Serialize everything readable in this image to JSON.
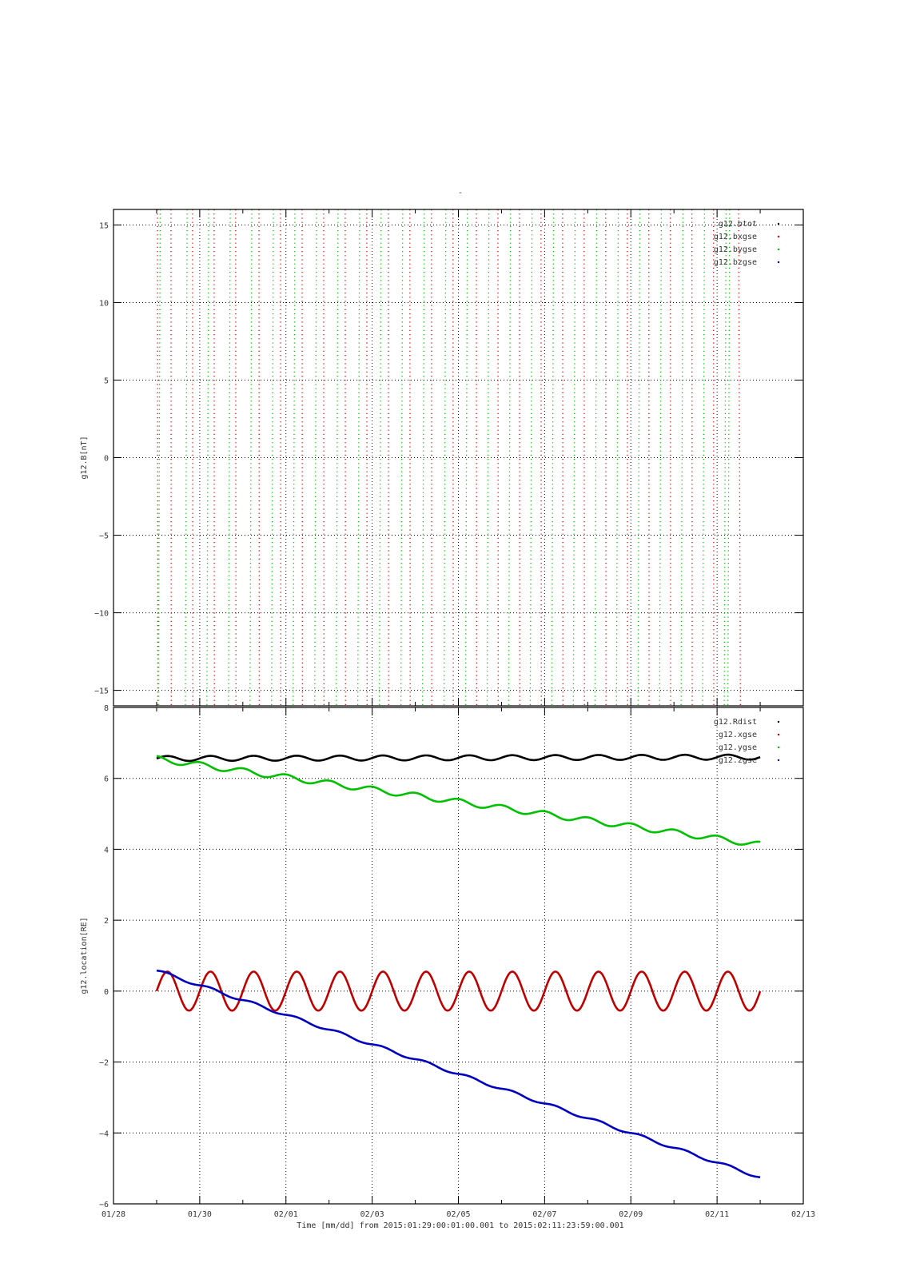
{
  "top_mark": "-",
  "x_axis": {
    "title": "Time [mm/dd]  from 2015:01:29:00:01:00.001  to  2015:02:11:23:59:00.001",
    "range": [
      "2015-01-28",
      "2015-02-13"
    ],
    "ticks": [
      {
        "date": "2015-01-28",
        "label": "01/28"
      },
      {
        "date": "2015-01-30",
        "label": "01/30"
      },
      {
        "date": "2015-02-01",
        "label": "02/01"
      },
      {
        "date": "2015-02-03",
        "label": "02/03"
      },
      {
        "date": "2015-02-05",
        "label": "02/05"
      },
      {
        "date": "2015-02-07",
        "label": "02/07"
      },
      {
        "date": "2015-02-09",
        "label": "02/09"
      },
      {
        "date": "2015-02-11",
        "label": "02/11"
      },
      {
        "date": "2015-02-13",
        "label": "02/13"
      }
    ]
  },
  "chart_data": [
    {
      "type": "scatter",
      "ylabel": "g12.B[nT]",
      "ylim": [
        -16,
        16
      ],
      "yticks": [
        -15,
        -10,
        -5,
        0,
        5,
        10,
        15
      ],
      "grid": true,
      "legend_position": "top-right",
      "series": [
        {
          "name": "g12.btot",
          "color": "#000000",
          "points": []
        },
        {
          "name": "g12.bxgse",
          "color": "#e00000",
          "points_note": "near-vertical dotted sweeps from top to bottom of plot",
          "sweeps": [
            {
              "x_top": "2015-01-29T00:30",
              "x_bottom": "2015-01-29T00:40"
            },
            {
              "x_top": "2015-01-29T08:00",
              "x_bottom": "2015-01-29T08:10"
            },
            {
              "x_top": "2015-01-29T20:00",
              "x_bottom": "2015-01-29T20:10"
            },
            {
              "x_top": "2015-01-30T08:00",
              "x_bottom": "2015-01-30T08:10"
            },
            {
              "x_top": "2015-01-30T20:00",
              "x_bottom": "2015-01-30T20:10"
            },
            {
              "x_top": "2015-01-31T09:00",
              "x_bottom": "2015-01-31T09:10"
            },
            {
              "x_top": "2015-01-31T21:00",
              "x_bottom": "2015-01-31T21:10"
            },
            {
              "x_top": "2015-02-01T09:00",
              "x_bottom": "2015-02-01T09:10"
            },
            {
              "x_top": "2015-02-01T21:00",
              "x_bottom": "2015-02-01T21:10"
            },
            {
              "x_top": "2015-02-02T09:00",
              "x_bottom": "2015-02-02T09:10"
            },
            {
              "x_top": "2015-02-02T21:00",
              "x_bottom": "2015-02-02T21:10"
            },
            {
              "x_top": "2015-02-03T09:00",
              "x_bottom": "2015-02-03T09:10"
            },
            {
              "x_top": "2015-02-03T21:00",
              "x_bottom": "2015-02-03T21:10"
            },
            {
              "x_top": "2015-02-04T09:00",
              "x_bottom": "2015-02-04T09:10"
            },
            {
              "x_top": "2015-02-04T21:00",
              "x_bottom": "2015-02-04T21:10"
            },
            {
              "x_top": "2015-02-05T10:00",
              "x_bottom": "2015-02-05T10:10"
            },
            {
              "x_top": "2015-02-05T22:00",
              "x_bottom": "2015-02-05T22:10"
            },
            {
              "x_top": "2015-02-06T10:00",
              "x_bottom": "2015-02-06T10:10"
            },
            {
              "x_top": "2015-02-06T22:00",
              "x_bottom": "2015-02-06T22:10"
            },
            {
              "x_top": "2015-02-07T10:00",
              "x_bottom": "2015-02-07T10:10"
            },
            {
              "x_top": "2015-02-07T22:00",
              "x_bottom": "2015-02-07T22:10"
            },
            {
              "x_top": "2015-02-08T10:00",
              "x_bottom": "2015-02-08T10:10"
            },
            {
              "x_top": "2015-02-08T22:00",
              "x_bottom": "2015-02-08T22:10"
            },
            {
              "x_top": "2015-02-09T10:00",
              "x_bottom": "2015-02-09T10:10"
            },
            {
              "x_top": "2015-02-09T22:00",
              "x_bottom": "2015-02-09T22:10"
            },
            {
              "x_top": "2015-02-10T10:00",
              "x_bottom": "2015-02-10T10:10"
            },
            {
              "x_top": "2015-02-10T22:00",
              "x_bottom": "2015-02-10T22:10"
            },
            {
              "x_top": "2015-02-11T12:00",
              "x_bottom": "2015-02-11T13:00"
            }
          ]
        },
        {
          "name": "g12.bygse",
          "color": "#00c000",
          "sweeps": [
            {
              "x_top": "2015-01-29T02:00",
              "x_bottom": "2015-01-29T01:00"
            },
            {
              "x_top": "2015-01-29T17:00",
              "x_bottom": "2015-01-29T16:00"
            },
            {
              "x_top": "2015-01-30T05:00",
              "x_bottom": "2015-01-30T04:00"
            },
            {
              "x_top": "2015-01-30T17:00",
              "x_bottom": "2015-01-30T16:00"
            },
            {
              "x_top": "2015-01-31T05:00",
              "x_bottom": "2015-01-31T04:00"
            },
            {
              "x_top": "2015-01-31T17:00",
              "x_bottom": "2015-01-31T16:00"
            },
            {
              "x_top": "2015-02-01T05:00",
              "x_bottom": "2015-02-01T04:00"
            },
            {
              "x_top": "2015-02-01T17:00",
              "x_bottom": "2015-02-01T16:00"
            },
            {
              "x_top": "2015-02-02T05:00",
              "x_bottom": "2015-02-02T04:00"
            },
            {
              "x_top": "2015-02-02T17:00",
              "x_bottom": "2015-02-02T16:00"
            },
            {
              "x_top": "2015-02-03T05:00",
              "x_bottom": "2015-02-03T04:00"
            },
            {
              "x_top": "2015-02-03T17:00",
              "x_bottom": "2015-02-03T16:00"
            },
            {
              "x_top": "2015-02-04T05:00",
              "x_bottom": "2015-02-04T04:00"
            },
            {
              "x_top": "2015-02-04T17:00",
              "x_bottom": "2015-02-04T16:00"
            },
            {
              "x_top": "2015-02-05T05:00",
              "x_bottom": "2015-02-05T04:00"
            },
            {
              "x_top": "2015-02-05T17:00",
              "x_bottom": "2015-02-05T16:00"
            },
            {
              "x_top": "2015-02-06T05:00",
              "x_bottom": "2015-02-06T04:00"
            },
            {
              "x_top": "2015-02-06T17:00",
              "x_bottom": "2015-02-06T16:00"
            },
            {
              "x_top": "2015-02-07T05:00",
              "x_bottom": "2015-02-07T04:00"
            },
            {
              "x_top": "2015-02-07T17:00",
              "x_bottom": "2015-02-07T16:00"
            },
            {
              "x_top": "2015-02-08T05:00",
              "x_bottom": "2015-02-08T04:00"
            },
            {
              "x_top": "2015-02-08T17:00",
              "x_bottom": "2015-02-08T16:00"
            },
            {
              "x_top": "2015-02-09T05:00",
              "x_bottom": "2015-02-09T04:00"
            },
            {
              "x_top": "2015-02-09T17:00",
              "x_bottom": "2015-02-09T16:00"
            },
            {
              "x_top": "2015-02-10T05:00",
              "x_bottom": "2015-02-10T04:00"
            },
            {
              "x_top": "2015-02-10T17:00",
              "x_bottom": "2015-02-10T16:00"
            },
            {
              "x_top": "2015-02-11T05:00",
              "x_bottom": "2015-02-11T04:00"
            },
            {
              "x_top": "2015-02-11T07:00",
              "x_bottom": "2015-02-11T06:00"
            }
          ]
        },
        {
          "name": "g12.bzgse",
          "color": "#0000e0",
          "points": []
        }
      ]
    },
    {
      "type": "line",
      "ylabel": "g12.location[RE]",
      "ylim": [
        -6,
        8
      ],
      "yticks": [
        -6,
        -4,
        -2,
        0,
        2,
        4,
        6,
        8
      ],
      "grid": true,
      "legend_position": "top-right",
      "x_start": "2015-01-29T00:01",
      "x_end": "2015-02-11T23:59",
      "series": [
        {
          "name": "g12.Rdist",
          "color": "#000000",
          "model": {
            "start": 6.56,
            "end": 6.6,
            "amplitude": 0.07,
            "period_days": 1.0,
            "phase": 0.0
          }
        },
        {
          "name": "g12.xgse",
          "color": "#c00000",
          "model": {
            "start": 0.0,
            "end": 0.0,
            "amplitude": 0.55,
            "period_days": 1.0,
            "phase": 0.0
          }
        },
        {
          "name": "g12.ygse",
          "color": "#00c000",
          "model": {
            "start": 6.55,
            "end": 4.13,
            "amplitude": 0.08,
            "period_days": 1.0,
            "phase": 0.5
          }
        },
        {
          "name": "g12.zgse",
          "color": "#0000c0",
          "model": {
            "start": 0.58,
            "end": -5.25,
            "amplitude": 0.04,
            "period_days": 1.0,
            "phase": 0.0
          }
        }
      ]
    }
  ]
}
